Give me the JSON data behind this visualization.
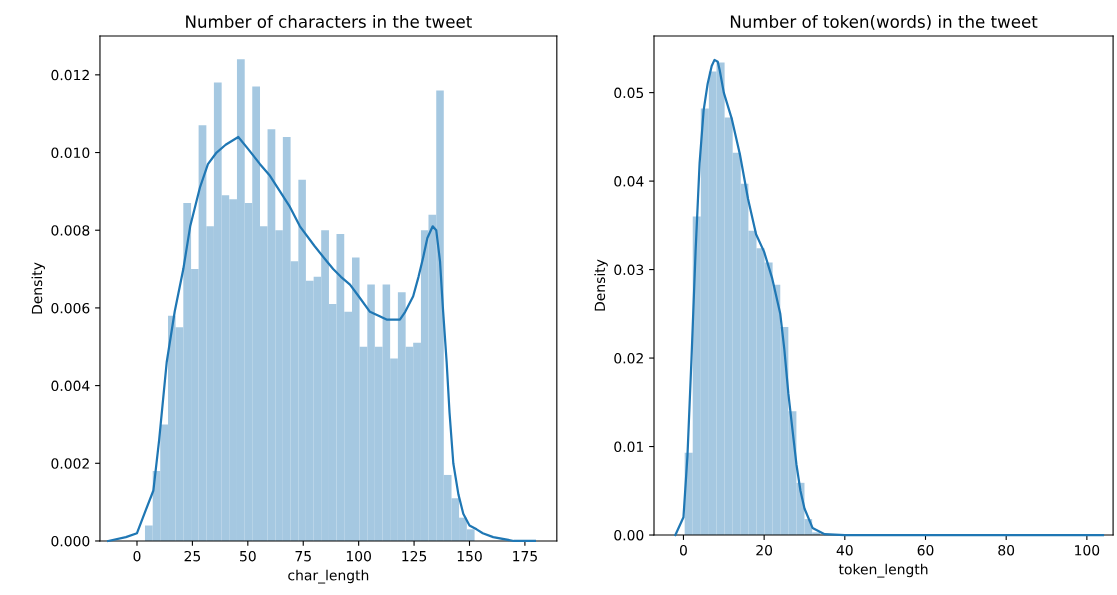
{
  "chart_data": [
    {
      "type": "histogram",
      "title": "Number of characters in the tweet",
      "xlabel": "char_length",
      "ylabel": "Density",
      "xlim": [
        -16.7,
        189.4
      ],
      "xticks": [
        0,
        25,
        50,
        75,
        100,
        125,
        150,
        175
      ],
      "ylim": [
        0,
        0.013
      ],
      "yticks": [
        {
          "value": 0,
          "label": "0.000"
        },
        {
          "value": 0.002,
          "label": "0.002"
        },
        {
          "value": 0.004,
          "label": "0.004"
        },
        {
          "value": 0.006,
          "label": "0.006"
        },
        {
          "value": 0.008,
          "label": "0.008"
        },
        {
          "value": 0.01,
          "label": "0.010"
        },
        {
          "value": 0.012,
          "label": "0.012"
        }
      ],
      "grid": false,
      "series": [
        {
          "color": "#a5c8e1",
          "bins": [
            3.6,
            7.1,
            10.5,
            14.0,
            17.4,
            20.9,
            24.4,
            27.8,
            31.3,
            34.7,
            38.2,
            41.6,
            45.1,
            48.6,
            52.0,
            55.5,
            58.9,
            62.4,
            65.8,
            69.3,
            72.8,
            76.2,
            79.7,
            83.1,
            86.6,
            90.0,
            93.5,
            97.0,
            100.4,
            103.9,
            107.3,
            110.8,
            114.2,
            117.7,
            121.2,
            124.6,
            128.1,
            131.5,
            135.0,
            138.4,
            141.9,
            145.3,
            148.8,
            152.3
          ],
          "values": [
            0.0004,
            0.0018,
            0.003,
            0.0058,
            0.0055,
            0.0087,
            0.007,
            0.0107,
            0.0081,
            0.0118,
            0.0089,
            0.0088,
            0.0124,
            0.0087,
            0.0117,
            0.0081,
            0.0106,
            0.008,
            0.0104,
            0.0072,
            0.0093,
            0.0067,
            0.0068,
            0.008,
            0.0061,
            0.0079,
            0.0059,
            0.0073,
            0.005,
            0.0066,
            0.005,
            0.0066,
            0.0047,
            0.0064,
            0.005,
            0.0051,
            0.008,
            0.0084,
            0.0116,
            0.0017,
            0.0011,
            0.0006,
            0.0003
          ]
        },
        {
          "type": "line",
          "color": "#1f77b4",
          "x": [
            -13,
            -5,
            0,
            4,
            7.4,
            10,
            13.4,
            17,
            20.9,
            24,
            28.4,
            32,
            35.9,
            40,
            45.7,
            50,
            55.5,
            60,
            64.5,
            69,
            73.5,
            80,
            85.6,
            88.5,
            92,
            96.1,
            100,
            105.1,
            109,
            112.6,
            118.6,
            121,
            124.6,
            127,
            129.1,
            131,
            133.4,
            135,
            136.7,
            138,
            139.7,
            141,
            142.7,
            145,
            147.2,
            150,
            153.2,
            156,
            160.7,
            170,
            179.5
          ],
          "values": [
            0,
            0.0001,
            0.0002,
            0.0008,
            0.0013,
            0.0026,
            0.0046,
            0.0059,
            0.007,
            0.0081,
            0.0091,
            0.0097,
            0.01,
            0.0102,
            0.0104,
            0.0101,
            0.0097,
            0.0094,
            0.009,
            0.0086,
            0.0081,
            0.0076,
            0.0072,
            0.007,
            0.0068,
            0.0066,
            0.0063,
            0.0059,
            0.0058,
            0.0057,
            0.0057,
            0.0059,
            0.0063,
            0.0068,
            0.0073,
            0.0078,
            0.0081,
            0.008,
            0.0072,
            0.006,
            0.0046,
            0.0033,
            0.002,
            0.0012,
            0.0007,
            0.0004,
            0.0003,
            0.0002,
            0.0001,
            0,
            0
          ]
        }
      ]
    },
    {
      "type": "histogram",
      "title": "Number of token(words) in the tweet",
      "xlabel": "token_length",
      "ylabel": "Density",
      "xlim": [
        -7.3,
        106.5
      ],
      "xticks": [
        0,
        20,
        40,
        60,
        80,
        100
      ],
      "ylim": [
        0,
        0.0564
      ],
      "yticks": [
        {
          "value": 0,
          "label": "0.00"
        },
        {
          "value": 0.01,
          "label": "0.01"
        },
        {
          "value": 0.02,
          "label": "0.02"
        },
        {
          "value": 0.03,
          "label": "0.03"
        },
        {
          "value": 0.04,
          "label": "0.04"
        },
        {
          "value": 0.05,
          "label": "0.05"
        }
      ],
      "grid": false,
      "series": [
        {
          "color": "#a5c8e1",
          "bins": [
            0.3,
            2.3,
            4.3,
            6.3,
            8.2,
            10.2,
            12.2,
            14.2,
            16.1,
            18.1,
            20.1,
            22.1,
            24.0,
            26.0,
            28.0,
            30.0,
            31.9,
            33.9
          ],
          "values": [
            0.0093,
            0.036,
            0.0482,
            0.0524,
            0.0534,
            0.0472,
            0.0432,
            0.0397,
            0.0344,
            0.0324,
            0.0308,
            0.0283,
            0.0235,
            0.014,
            0.0059,
            0.0018,
            0.0003
          ]
        },
        {
          "type": "line",
          "color": "#1f77b4",
          "x": [
            -2,
            0,
            1,
            2,
            3,
            4,
            5,
            6,
            7,
            7.7,
            8.5,
            9,
            10,
            11,
            12,
            14,
            16,
            18,
            20,
            22,
            24,
            25,
            26,
            27,
            28,
            29,
            30,
            32,
            35,
            40,
            60,
            80,
            104
          ],
          "values": [
            0,
            0.002,
            0.009,
            0.02,
            0.032,
            0.042,
            0.048,
            0.051,
            0.053,
            0.0537,
            0.0535,
            0.0525,
            0.05,
            0.0485,
            0.047,
            0.043,
            0.038,
            0.034,
            0.032,
            0.029,
            0.025,
            0.021,
            0.016,
            0.012,
            0.008,
            0.005,
            0.003,
            0.0008,
            0.0001,
            0,
            0,
            0,
            0
          ]
        }
      ]
    }
  ]
}
